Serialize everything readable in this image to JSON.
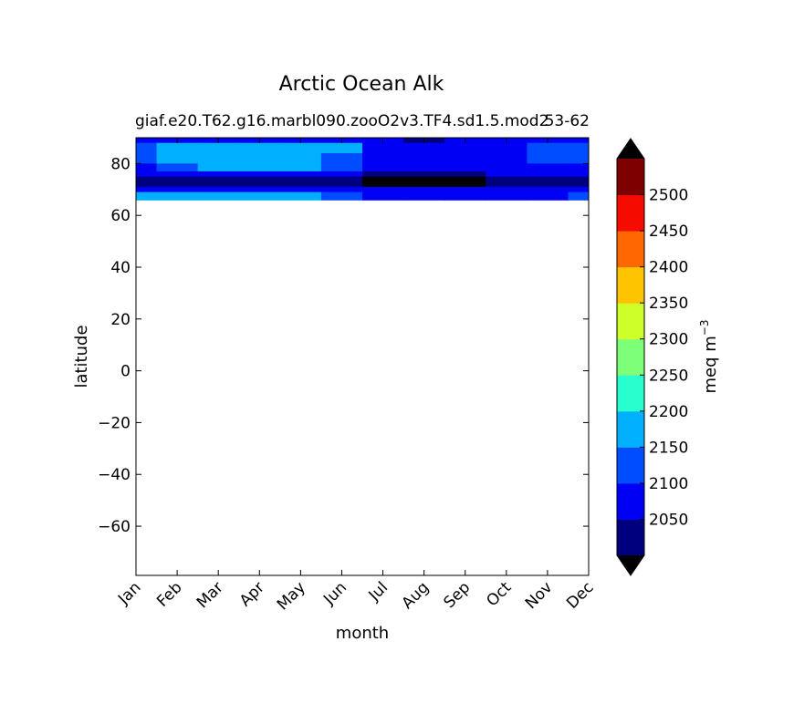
{
  "chart_data": {
    "type": "heatmap",
    "title": "Arctic Ocean Alk",
    "subtitle_left": "giaf.e20.T62.g16.marbl090.zooO2v3.TF4.sd1.5.mod2",
    "subtitle_right": "53-62",
    "xlabel": "month",
    "ylabel": "latitude",
    "x_ticks": [
      "Jan",
      "Feb",
      "Mar",
      "Apr",
      "May",
      "Jun",
      "Jul",
      "Aug",
      "Sep",
      "Oct",
      "Nov",
      "Dec"
    ],
    "y_ticks": [
      80,
      60,
      40,
      20,
      0,
      -20,
      -40,
      -60
    ],
    "ylim": [
      -79,
      90
    ],
    "xlim": [
      0,
      11
    ],
    "colorbar": {
      "label": "meq m",
      "label_exponent": "−3",
      "levels": [
        2000,
        2050,
        2100,
        2150,
        2200,
        2250,
        2300,
        2350,
        2400,
        2450,
        2500,
        2550
      ],
      "tick_labels": [
        "2050",
        "2100",
        "2150",
        "2200",
        "2250",
        "2300",
        "2350",
        "2400",
        "2450",
        "2500"
      ],
      "colors": [
        "#00007f",
        "#0000f5",
        "#004cff",
        "#00b0ff",
        "#29ffce",
        "#7dff7a",
        "#ceff29",
        "#ffc400",
        "#ff6800",
        "#f50b00",
        "#7f0000"
      ],
      "under_color": "#000000",
      "over_color": "#000000"
    },
    "data_latitude_range": [
      66,
      90
    ],
    "latitudes": [
      90,
      86,
      82,
      78,
      76,
      74,
      72,
      70,
      68,
      66
    ],
    "months": [
      "Jan",
      "Feb",
      "Mar",
      "Apr",
      "May",
      "Jun",
      "Jul",
      "Aug",
      "Sep",
      "Oct",
      "Nov",
      "Dec"
    ],
    "values": [
      [
        2095,
        2095,
        2095,
        2095,
        2095,
        2095,
        2060,
        2040,
        2060,
        2095,
        2095,
        2095
      ],
      [
        2120,
        2160,
        2160,
        2160,
        2160,
        2150,
        2075,
        2060,
        2075,
        2090,
        2115,
        2120
      ],
      [
        2110,
        2150,
        2160,
        2160,
        2160,
        2140,
        2075,
        2070,
        2075,
        2085,
        2100,
        2105
      ],
      [
        2095,
        2120,
        2150,
        2160,
        2150,
        2110,
        2070,
        2065,
        2065,
        2070,
        2090,
        2095
      ],
      [
        2075,
        2090,
        2090,
        2090,
        2090,
        2070,
        2045,
        2040,
        2045,
        2060,
        2075,
        2075
      ],
      [
        2045,
        2045,
        2045,
        2045,
        2045,
        2040,
        1990,
        1990,
        1990,
        2020,
        2040,
        2045
      ],
      [
        2045,
        2045,
        2045,
        2045,
        2045,
        2020,
        1990,
        1990,
        1990,
        2040,
        2045,
        2045
      ],
      [
        2095,
        2095,
        2095,
        2095,
        2095,
        2075,
        2065,
        2065,
        2065,
        2070,
        2090,
        2095
      ],
      [
        2160,
        2160,
        2160,
        2160,
        2160,
        2110,
        2080,
        2080,
        2080,
        2085,
        2095,
        2100
      ],
      [
        2160,
        2160,
        2160,
        2160,
        2160,
        2110,
        2080,
        2080,
        2080,
        2085,
        2095,
        2100
      ]
    ]
  }
}
